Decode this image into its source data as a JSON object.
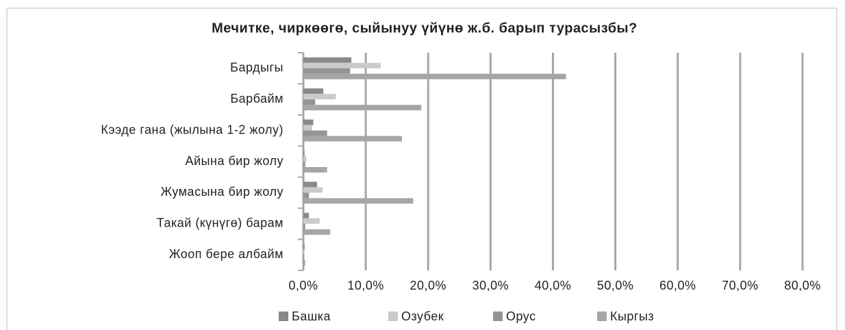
{
  "chart_data": {
    "type": "hbar",
    "title": "Мечитке, чиркөөгө, сыйынуу үйүнө ж.б. барып турасызбы?",
    "categories": [
      "Бардыгы",
      "Барбайм",
      "Кээде гана (жылына 1-2 жолу)",
      "Айына бир жолу",
      "Жумасына бир жолу",
      "Такай (күнүгө) барам",
      "Жооп бере албайм"
    ],
    "series": [
      {
        "name": "Башка",
        "color": "#8a8a8a",
        "values": [
          7.7,
          3.2,
          1.6,
          0.2,
          2.2,
          0.9,
          0.2
        ]
      },
      {
        "name": "Озубек",
        "color": "#cacaca",
        "values": [
          12.4,
          5.2,
          1.4,
          0.5,
          3.1,
          2.6,
          0.2
        ]
      },
      {
        "name": "Орус",
        "color": "#959595",
        "values": [
          7.5,
          1.9,
          3.8,
          0.3,
          0.9,
          0.3,
          0.1
        ]
      },
      {
        "name": "Кыргыз",
        "color": "#a6a6a6",
        "values": [
          42.1,
          18.9,
          15.8,
          3.8,
          17.6,
          4.3,
          0.3
        ]
      }
    ],
    "xlim": [
      0,
      80
    ],
    "xticks": [
      {
        "value": 0,
        "label": "0,0%"
      },
      {
        "value": 10,
        "label": "10,0%"
      },
      {
        "value": 20,
        "label": "20,0%"
      },
      {
        "value": 30,
        "label": "30,0%"
      },
      {
        "value": 40,
        "label": "40,0%"
      },
      {
        "value": 50,
        "label": "50,0%"
      },
      {
        "value": 60,
        "label": "60,0%"
      },
      {
        "value": 70,
        "label": "70,0%"
      },
      {
        "value": 80,
        "label": "80,0%"
      }
    ],
    "grid": true,
    "legend": "bottom"
  }
}
